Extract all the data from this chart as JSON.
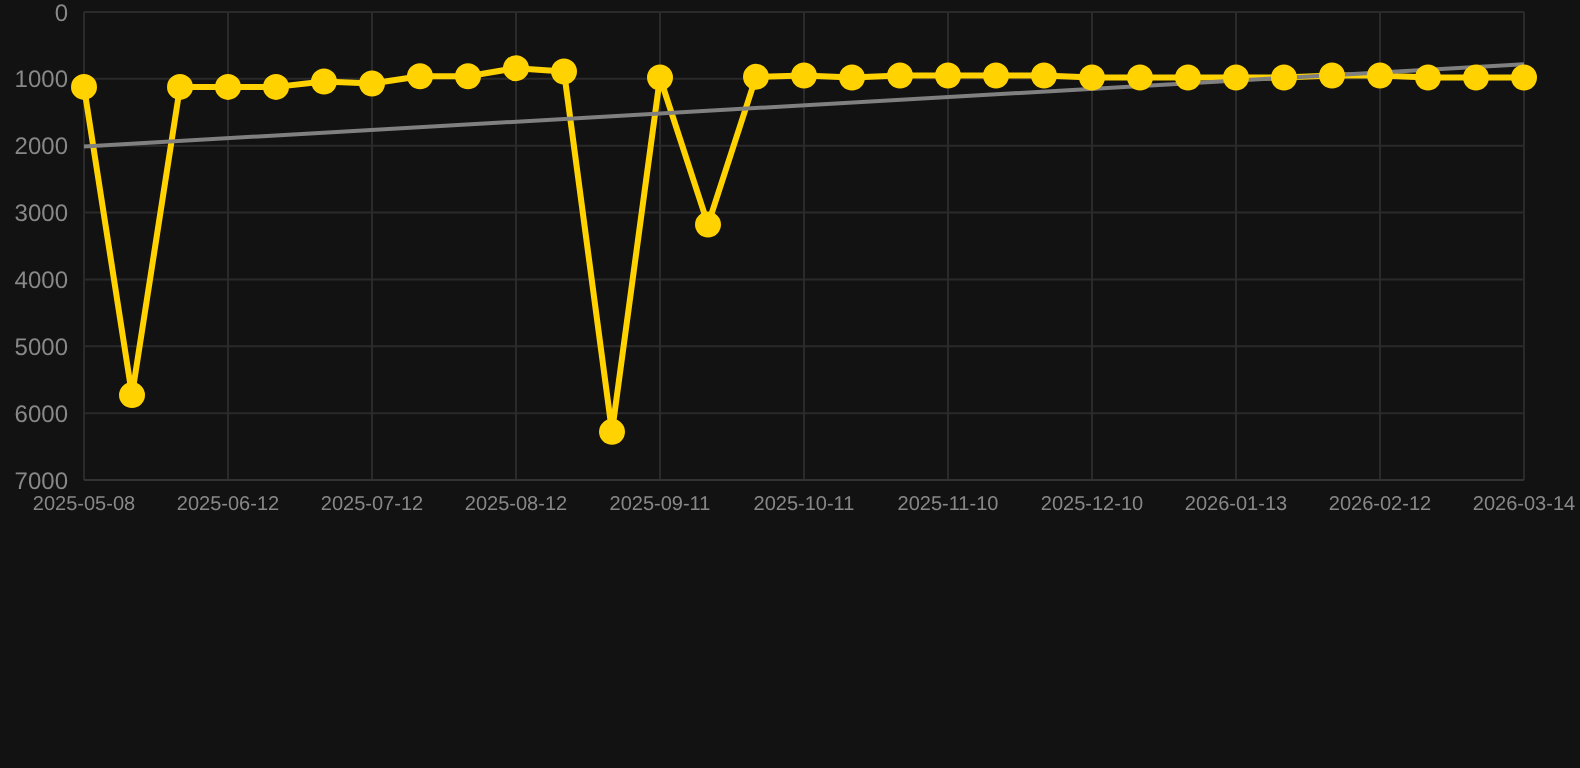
{
  "chart_data": {
    "type": "line",
    "categories": [
      "2025-05-08",
      null,
      null,
      "2025-06-12",
      null,
      null,
      "2025-07-12",
      null,
      null,
      "2025-08-12",
      null,
      null,
      "2025-09-11",
      null,
      null,
      "2025-10-11",
      null,
      null,
      "2025-11-10",
      null,
      null,
      "2025-12-10",
      null,
      null,
      "2026-01-13",
      null,
      null,
      "2026-02-12",
      null,
      null,
      "2026-03-14"
    ],
    "series": [
      {
        "color": "#ffd200",
        "marker": "circle",
        "values": [
          1120,
          5730,
          1120,
          1120,
          1120,
          1040,
          1070,
          960,
          960,
          840,
          890,
          6280,
          980,
          3180,
          970,
          950,
          980,
          950,
          950,
          950,
          950,
          980,
          980,
          980,
          980,
          980,
          950,
          950,
          980,
          980,
          980
        ]
      },
      {
        "type": "line",
        "color": "#808080",
        "marker": "none",
        "values": [
          2010,
          null,
          null,
          null,
          null,
          null,
          null,
          null,
          null,
          null,
          null,
          null,
          null,
          null,
          null,
          null,
          null,
          null,
          null,
          null,
          null,
          null,
          null,
          null,
          null,
          null,
          null,
          null,
          null,
          null,
          780
        ]
      }
    ],
    "ylim": [
      7000,
      0
    ],
    "yticks": [
      0,
      1000,
      2000,
      3000,
      4000,
      5000,
      6000,
      7000
    ],
    "grid": true
  }
}
